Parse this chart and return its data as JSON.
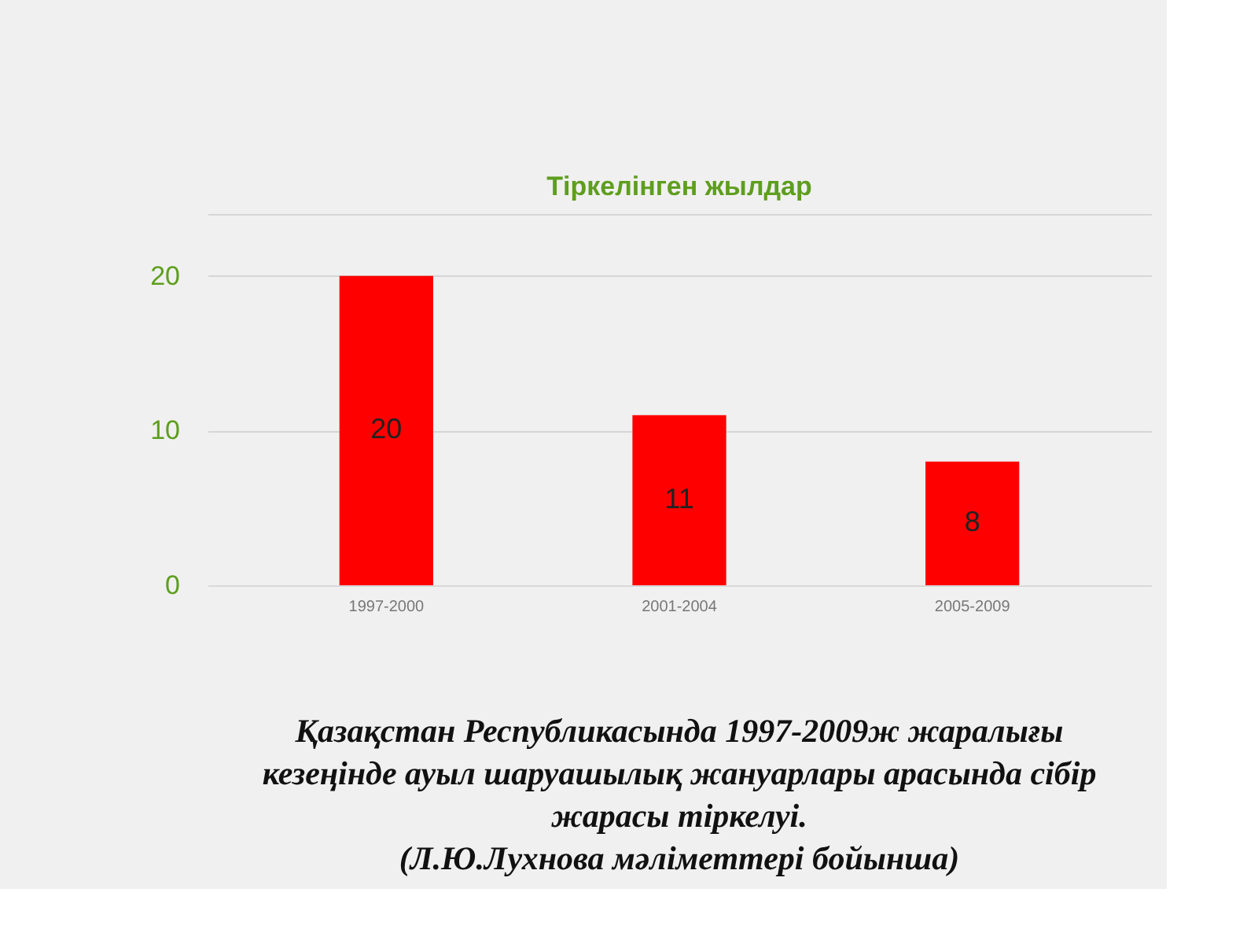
{
  "chart_data": {
    "type": "bar",
    "title": "Тіркелінген жылдар",
    "categories": [
      "1997-2000",
      "2001-2004",
      "2005-2009"
    ],
    "values": [
      20,
      11,
      8
    ],
    "color": "#ff0000",
    "ylim": [
      0,
      24
    ],
    "yticks": [
      0,
      10,
      20,
      {
        "value": 24,
        "label": null
      }
    ],
    "grid": "y",
    "data_labels": true,
    "annotations": [
      "Қазақстан Республикасында 1997-2009ж жаралығы кезеңінде ауыл шаруашылық жануарлары арасында сібір жарасы тіркелуі.",
      "(Л.Ю.Лухнова мәліметтері бойынша)"
    ]
  }
}
